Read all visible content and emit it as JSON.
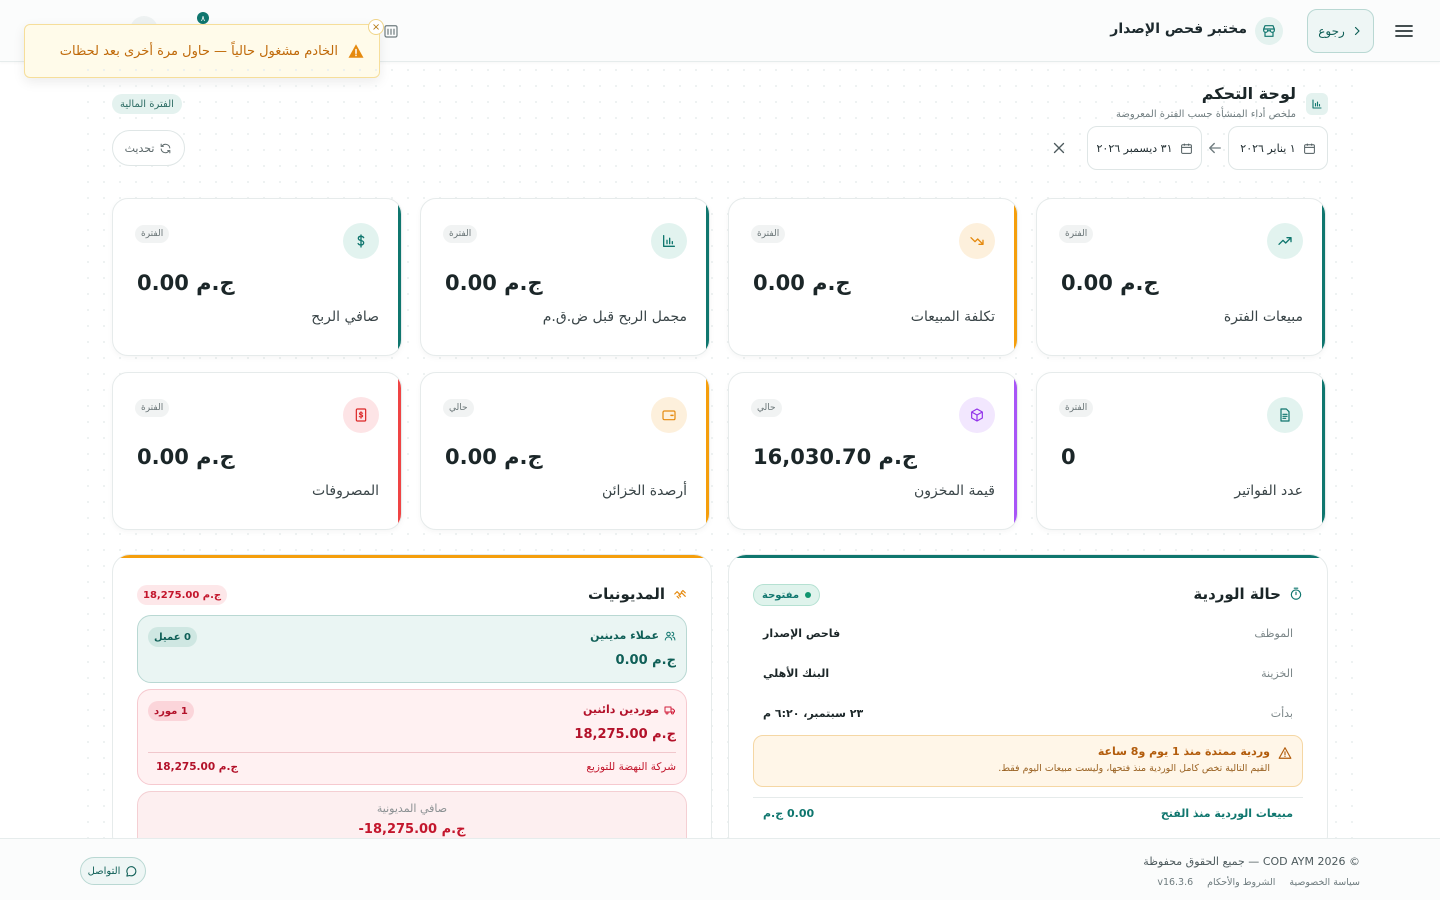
{
  "header": {
    "title": "مختبر فحص الإصدار",
    "back_label": "رجوع",
    "badge_count": "٨"
  },
  "toast": {
    "message": "الخادم مشغول حالياً — حاول مرة أخرى بعد لحظات",
    "close": "×"
  },
  "page": {
    "title": "لوحة التحكم",
    "subtitle": "ملخص أداء المنشأة حسب الفترة المعروضة",
    "period_chip": "الفترة المالية",
    "refresh_label": "تحديث",
    "date_from": "١ يناير ٢٠٢٦",
    "date_to": "٣١ ديسمبر ٢٠٢٦"
  },
  "cards": [
    {
      "label": "مبيعات الفترة",
      "value": "ج.م 0.00",
      "badge": "الفترة",
      "icon": "trend-up-icon",
      "color": "#0f766e"
    },
    {
      "label": "تكلفة المبيعات",
      "value": "ج.م 0.00",
      "badge": "الفترة",
      "icon": "trend-down-icon",
      "color": "#f59e0b"
    },
    {
      "label": "مجمل الربح قبل ض.ق.م",
      "value": "ج.م 0.00",
      "badge": "الفترة",
      "icon": "bar-chart-icon",
      "color": "#0f766e"
    },
    {
      "label": "صافي الربح",
      "value": "ج.م 0.00",
      "badge": "الفترة",
      "icon": "dollar-icon",
      "color": "#0f766e"
    },
    {
      "label": "عدد الفواتير",
      "value": "0",
      "badge": "الفترة",
      "icon": "document-icon",
      "color": "#0f766e"
    },
    {
      "label": "قيمة المخزون",
      "value": "ج.م 16,030.70",
      "badge": "حالي",
      "icon": "box-icon",
      "color": "#a855f7"
    },
    {
      "label": "أرصدة الخزائن",
      "value": "ج.م 0.00",
      "badge": "حالي",
      "icon": "wallet-icon",
      "color": "#f59e0b"
    },
    {
      "label": "المصروفات",
      "value": "ج.م 0.00",
      "badge": "الفترة",
      "icon": "receipt-icon",
      "color": "#ef4444"
    }
  ],
  "shift": {
    "title": "حالة الوردية",
    "status": "مفتوحة",
    "rows": [
      {
        "key": "الموظف",
        "value": "فاحص الإصدار"
      },
      {
        "key": "الخزينة",
        "value": "البنك الأهلي"
      },
      {
        "key": "بدأت",
        "value": "٢٣ سبتمبر، ٦:٢٠ م"
      }
    ],
    "warning_title": "وردية ممتدة منذ 1 يوم و8 ساعة",
    "warning_text": "القيم التالية تخص كامل الوردية منذ فتحها، وليست مبيعات اليوم فقط.",
    "sales_label": "مبيعات الوردية منذ الفتح",
    "sales_value": "0.00 ج.م"
  },
  "debts": {
    "title": "المديونيات",
    "total": "18,275.00 ج.م",
    "customers_label": "عملاء مدينين",
    "customers_chip": "0 عميل",
    "customers_amount": "0.00 ج.م",
    "suppliers_label": "موردين دائنين",
    "suppliers_chip": "1 مورد",
    "suppliers_amount": "18,275.00 ج.م",
    "supplier_name": "شركة النهضة للتوزيع",
    "supplier_amount": "18,275.00 ج.م",
    "net_label": "صافي المديونية",
    "net_value": "-18,275.00 ج.م"
  },
  "footer": {
    "copyright": "© 2026 COD AYM — جميع الحقوق محفوظة",
    "privacy": "سياسة الخصوصية",
    "terms": "الشروط والأحكام",
    "version": "v16.3.6",
    "contact": "التواصل"
  }
}
